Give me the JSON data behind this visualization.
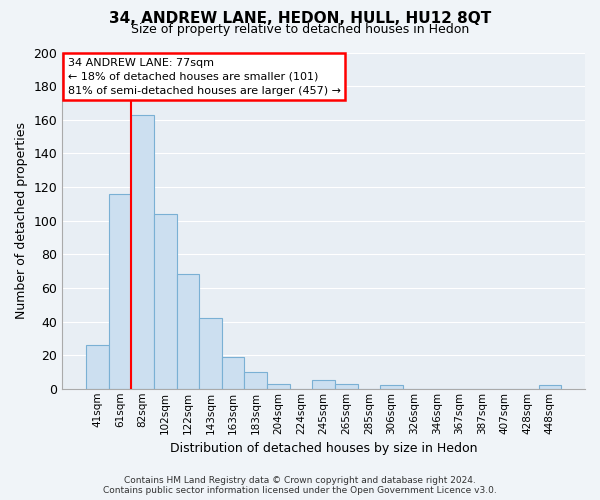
{
  "title": "34, ANDREW LANE, HEDON, HULL, HU12 8QT",
  "subtitle": "Size of property relative to detached houses in Hedon",
  "xlabel": "Distribution of detached houses by size in Hedon",
  "ylabel": "Number of detached properties",
  "categories": [
    "41sqm",
    "61sqm",
    "82sqm",
    "102sqm",
    "122sqm",
    "143sqm",
    "163sqm",
    "183sqm",
    "204sqm",
    "224sqm",
    "245sqm",
    "265sqm",
    "285sqm",
    "306sqm",
    "326sqm",
    "346sqm",
    "367sqm",
    "387sqm",
    "407sqm",
    "428sqm",
    "448sqm"
  ],
  "values": [
    26,
    116,
    163,
    104,
    68,
    42,
    19,
    10,
    3,
    0,
    5,
    3,
    0,
    2,
    0,
    0,
    0,
    0,
    0,
    0,
    2
  ],
  "bar_fill_color": "#ccdff0",
  "bar_edge_color": "#7ab0d4",
  "redline_x": 1.5,
  "annotation_title": "34 ANDREW LANE: 77sqm",
  "annotation_line1": "← 18% of detached houses are smaller (101)",
  "annotation_line2": "81% of semi-detached houses are larger (457) →",
  "ylim": [
    0,
    200
  ],
  "yticks": [
    0,
    20,
    40,
    60,
    80,
    100,
    120,
    140,
    160,
    180,
    200
  ],
  "background_color": "#f0f4f8",
  "plot_bg_color": "#e8eef4",
  "grid_color": "#ffffff",
  "footer_line1": "Contains HM Land Registry data © Crown copyright and database right 2024.",
  "footer_line2": "Contains public sector information licensed under the Open Government Licence v3.0."
}
